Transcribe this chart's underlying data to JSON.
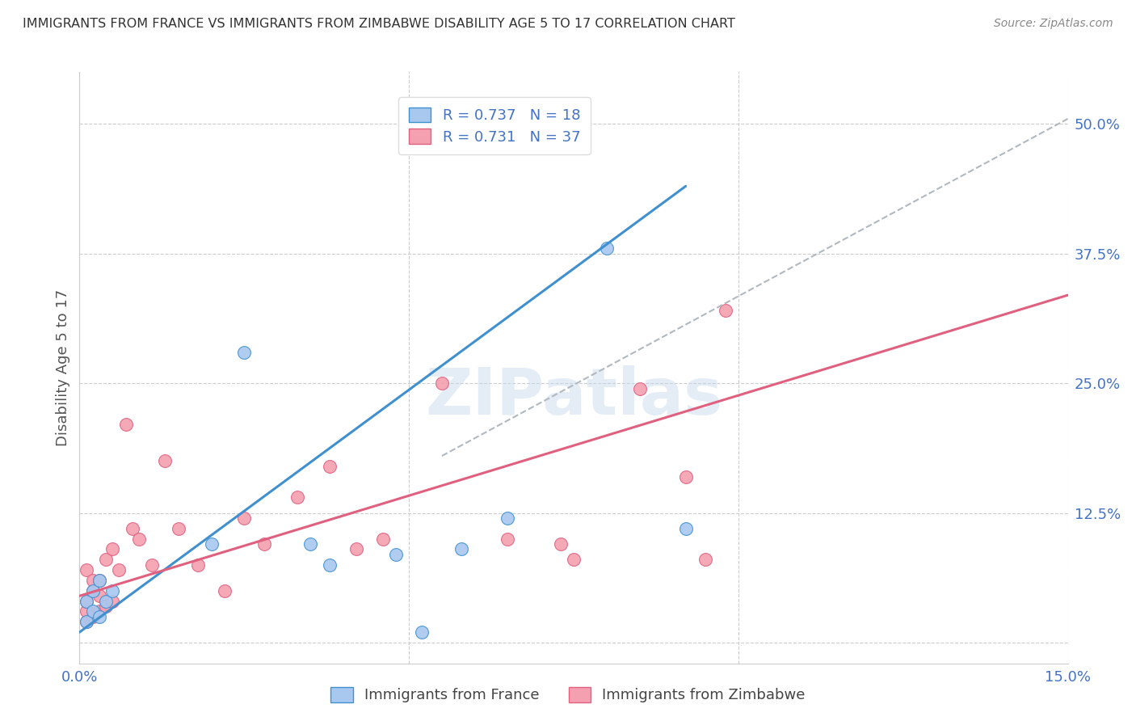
{
  "title": "IMMIGRANTS FROM FRANCE VS IMMIGRANTS FROM ZIMBABWE DISABILITY AGE 5 TO 17 CORRELATION CHART",
  "source": "Source: ZipAtlas.com",
  "ylabel": "Disability Age 5 to 17",
  "yticks_labels": [
    "",
    "12.5%",
    "25.0%",
    "37.5%",
    "50.0%"
  ],
  "ytick_vals": [
    0.0,
    0.125,
    0.25,
    0.375,
    0.5
  ],
  "watermark": "ZIPatlas",
  "legend_france_r": "R = 0.737",
  "legend_france_n": "N = 18",
  "legend_zimbabwe_r": "R = 0.731",
  "legend_zimbabwe_n": "N = 37",
  "france_color": "#a8c8f0",
  "zimbabwe_color": "#f4a0b0",
  "france_line_color": "#4090d0",
  "zimbabwe_line_color": "#e06080",
  "dashed_line_color": "#b0b8c0",
  "xlim": [
    0.0,
    0.15
  ],
  "ylim": [
    -0.02,
    0.55
  ],
  "france_x": [
    0.001,
    0.001,
    0.002,
    0.002,
    0.003,
    0.003,
    0.004,
    0.005,
    0.02,
    0.025,
    0.035,
    0.038,
    0.048,
    0.052,
    0.058,
    0.065,
    0.08,
    0.092
  ],
  "france_y": [
    0.02,
    0.04,
    0.03,
    0.05,
    0.025,
    0.06,
    0.04,
    0.05,
    0.095,
    0.28,
    0.095,
    0.075,
    0.085,
    0.01,
    0.09,
    0.12,
    0.38,
    0.11
  ],
  "zimbabwe_x": [
    0.001,
    0.001,
    0.001,
    0.001,
    0.002,
    0.002,
    0.002,
    0.003,
    0.003,
    0.003,
    0.004,
    0.004,
    0.005,
    0.005,
    0.006,
    0.007,
    0.008,
    0.009,
    0.011,
    0.013,
    0.015,
    0.018,
    0.022,
    0.025,
    0.028,
    0.033,
    0.038,
    0.042,
    0.046,
    0.055,
    0.065,
    0.073,
    0.075,
    0.085,
    0.092,
    0.095,
    0.098
  ],
  "zimbabwe_y": [
    0.02,
    0.03,
    0.04,
    0.07,
    0.025,
    0.05,
    0.06,
    0.03,
    0.045,
    0.06,
    0.035,
    0.08,
    0.04,
    0.09,
    0.07,
    0.21,
    0.11,
    0.1,
    0.075,
    0.175,
    0.11,
    0.075,
    0.05,
    0.12,
    0.095,
    0.14,
    0.17,
    0.09,
    0.1,
    0.25,
    0.1,
    0.095,
    0.08,
    0.245,
    0.16,
    0.08,
    0.32
  ],
  "france_trend_x": [
    0.0,
    0.092
  ],
  "france_trend_y": [
    0.01,
    0.44
  ],
  "zimbabwe_trend_x": [
    0.0,
    0.15
  ],
  "zimbabwe_trend_y": [
    0.045,
    0.335
  ],
  "dash_trend_x": [
    0.055,
    0.15
  ],
  "dash_trend_y": [
    0.18,
    0.505
  ],
  "background_color": "#ffffff",
  "grid_color": "#cccccc",
  "xtick_positions": [
    0.0,
    0.05,
    0.1,
    0.15
  ],
  "legend_text_color": "#4472c4",
  "axis_label_color": "#4472c4",
  "title_color": "#333333",
  "source_color": "#888888"
}
